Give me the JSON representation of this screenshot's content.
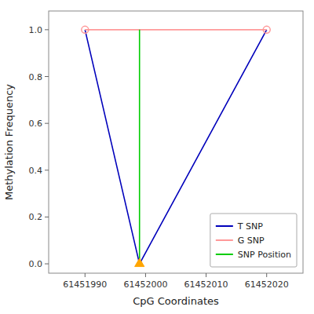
{
  "chart_data": {
    "type": "line",
    "xlabel": "CpG Coordinates",
    "ylabel": "Methylation Frequency",
    "series": [
      {
        "name": "T SNP",
        "type": "line",
        "color": "#0000BB",
        "x": [
          61451990,
          61451999,
          61452020
        ],
        "values": [
          1.0,
          0.0,
          1.0
        ]
      },
      {
        "name": "G SNP",
        "type": "line",
        "color": "#FF9999",
        "x": [
          61451990,
          61452000,
          61452020
        ],
        "values": [
          1.0,
          1.0,
          1.0
        ]
      },
      {
        "name": "SNP Position",
        "type": "line",
        "color": "#00CC00",
        "x": [
          61451999,
          61451999
        ],
        "values": [
          0.0,
          1.0
        ]
      },
      {
        "type": "scatter",
        "marker": "triangle",
        "color": "#FFA500",
        "x": [
          61451999
        ],
        "values": [
          0.0
        ]
      },
      {
        "type": "scatter",
        "marker": "circle",
        "color": "#FF9999",
        "x": [
          61451990,
          61452020
        ],
        "values": [
          1.0,
          1.0
        ]
      }
    ],
    "xlim": [
      61451984,
      61452026
    ],
    "ylim": [
      -0.04,
      1.08
    ],
    "xticks": [
      61451990,
      61452000,
      61452010,
      61452020
    ],
    "yticks": [
      {
        "value": 0.0,
        "label": "0.0"
      },
      0.2,
      0.4,
      0.6,
      0.8,
      {
        "value": 1.0,
        "label": "1.0"
      }
    ],
    "legend": "lower right"
  }
}
